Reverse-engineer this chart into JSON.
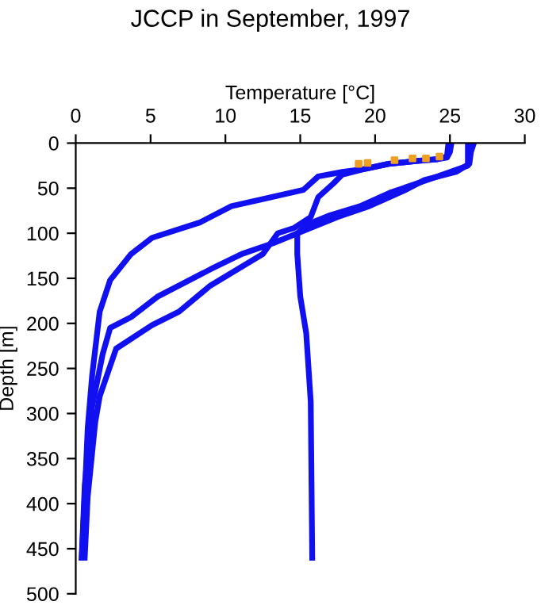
{
  "chart_data": {
    "type": "line",
    "title": "JCCP in September, 1997",
    "xlabel": "Temperature [°C]",
    "ylabel": "Depth [m]",
    "xlim": [
      0,
      30
    ],
    "xticks": [
      0,
      5,
      10,
      15,
      20,
      25,
      30
    ],
    "ylim": [
      500,
      0
    ],
    "yticks": [
      0,
      50,
      100,
      150,
      200,
      250,
      300,
      350,
      400,
      450,
      500
    ],
    "grid": false,
    "legend": false,
    "series": [
      {
        "color": "#1010f0",
        "x": [
          26.6,
          26.4,
          26.3,
          25.4,
          23.3,
          21.9,
          19.6,
          17.5,
          15.7,
          13.2,
          11.1,
          9.0,
          7.6,
          5.5,
          3.7,
          2.3,
          1.8,
          1.1,
          0.6,
          0.4
        ],
        "values": [
          0,
          10,
          23,
          32,
          41,
          53,
          70,
          82,
          94,
          111,
          123,
          140,
          152,
          170,
          193,
          205,
          234,
          292,
          380,
          460
        ]
      },
      {
        "color": "#1010f0",
        "x": [
          24.9,
          24.8,
          24.1,
          22.7,
          20.9,
          19.2,
          17.8,
          16.2,
          15.2,
          10.4,
          8.3,
          5.1,
          3.7,
          2.3,
          1.6,
          1.1,
          0.8,
          0.6,
          0.4
        ],
        "values": [
          0,
          15,
          18,
          20,
          23,
          29,
          32,
          37,
          52,
          70,
          88,
          105,
          123,
          152,
          187,
          257,
          316,
          392,
          460
        ]
      },
      {
        "color": "#1010f0",
        "x": [
          25.1,
          25.0,
          24.8,
          24.1,
          22.7,
          20.9,
          19.2,
          17.8,
          17.2,
          16.2,
          15.7,
          14.6,
          13.5,
          12.5,
          9.0,
          6.9,
          5.1,
          2.7,
          1.6,
          1.3,
          0.8,
          0.6
        ],
        "values": [
          0,
          10,
          16,
          18,
          20,
          23,
          29,
          35,
          45,
          60,
          82,
          94,
          100,
          123,
          158,
          187,
          202,
          228,
          281,
          310,
          392,
          460
        ]
      },
      {
        "color": "#1010f0",
        "x": [
          26.2,
          26.2,
          24.0,
          21.0,
          19.0,
          17.0,
          15.5,
          14.8,
          14.8,
          15.0,
          15.4,
          15.7,
          15.8
        ],
        "values": [
          0,
          25,
          38,
          55,
          70,
          80,
          90,
          100,
          123,
          170,
          211,
          287,
          460
        ]
      },
      {
        "type": "scatter",
        "color": "#f0a020",
        "x": [
          18.9,
          19.5,
          21.3,
          22.5,
          23.4,
          24.3
        ],
        "values": [
          23,
          22,
          19,
          17,
          17,
          15
        ]
      }
    ]
  }
}
